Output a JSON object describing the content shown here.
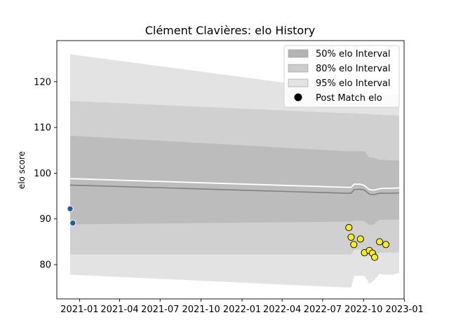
{
  "chart_data": {
    "type": "line",
    "title": "Clément Clavières: elo History",
    "xlabel": "",
    "ylabel": "elo score",
    "xlim": [
      "2020-11-11",
      "2022-12-31"
    ],
    "ylim": [
      72.5,
      129
    ],
    "x_ticks": [
      "2021-01",
      "2021-04",
      "2021-07",
      "2021-10",
      "2022-01",
      "2022-04",
      "2022-07",
      "2022-10",
      "2023-01"
    ],
    "y_ticks": [
      80,
      90,
      100,
      110,
      120
    ],
    "grid": false,
    "legend_position": "top-right",
    "legend": [
      {
        "label": "50% elo Interval",
        "kind": "patch",
        "color": "#b3b3b3"
      },
      {
        "label": "80% elo Interval",
        "kind": "patch",
        "color": "#cccccc"
      },
      {
        "label": "95% elo Interval",
        "kind": "patch",
        "color": "#e3e3e3"
      },
      {
        "label": "Post Match elo",
        "kind": "marker",
        "color": "#000000"
      }
    ],
    "bands": [
      {
        "level": "95%",
        "color": "#e3e3e3",
        "x": [
          "2020-12-11",
          "2022-08-24",
          "2022-09-03",
          "2022-09-10",
          "2022-09-24",
          "2022-10-03",
          "2022-10-14",
          "2022-10-24",
          "2022-11-06",
          "2022-11-15",
          "2022-12-05",
          "2022-12-20"
        ],
        "upper": [
          126,
          118,
          117.7,
          117.6,
          117.6,
          117.5,
          117.4,
          117.3,
          117.2,
          117.1,
          117.0,
          117.0
        ],
        "lower": [
          77.8,
          75.0,
          75.0,
          77.5,
          77.6,
          77.5,
          75.8,
          76.5,
          78.0,
          77.8,
          77.8,
          78.2
        ]
      },
      {
        "level": "80%",
        "color": "#d0d0d0",
        "x": [
          "2020-12-11",
          "2022-08-24",
          "2022-09-03",
          "2022-09-10",
          "2022-09-24",
          "2022-10-03",
          "2022-10-14",
          "2022-10-24",
          "2022-11-06",
          "2022-11-15",
          "2022-12-05",
          "2022-12-20"
        ],
        "upper": [
          115.8,
          113.1,
          113.1,
          113.1,
          113.0,
          113.0,
          112.9,
          112.8,
          112.8,
          112.7,
          112.7,
          112.6
        ],
        "lower": [
          82.2,
          82.2,
          82.2,
          83.2,
          83.3,
          83.2,
          81.8,
          82.0,
          82.6,
          82.6,
          82.6,
          82.7
        ]
      },
      {
        "level": "50%",
        "color": "#bcbcbc",
        "x": [
          "2020-12-11",
          "2022-08-24",
          "2022-09-03",
          "2022-09-10",
          "2022-09-24",
          "2022-10-03",
          "2022-10-14",
          "2022-10-24",
          "2022-11-06",
          "2022-11-15",
          "2022-12-05",
          "2022-12-20"
        ],
        "upper": [
          108.2,
          104.8,
          104.8,
          104.8,
          104.8,
          104.8,
          103.4,
          103.4,
          102.9,
          102.9,
          102.8,
          102.8
        ],
        "lower": [
          88.8,
          89.4,
          89.4,
          89.6,
          89.6,
          89.5,
          88.7,
          88.8,
          89.8,
          89.8,
          89.8,
          89.9
        ]
      }
    ],
    "series": [
      {
        "role": "mean",
        "color": "#808080",
        "x": [
          "2020-12-11",
          "2022-08-24",
          "2022-09-03",
          "2022-09-10",
          "2022-09-24",
          "2022-10-03",
          "2022-10-14",
          "2022-10-24",
          "2022-11-06",
          "2022-11-15",
          "2022-12-05",
          "2022-12-20"
        ],
        "values": [
          97.4,
          95.6,
          95.6,
          96.4,
          96.5,
          96.3,
          95.4,
          95.3,
          95.6,
          95.6,
          95.6,
          95.7
        ]
      },
      {
        "role": "upper-reference",
        "color": "#ffffff",
        "x": [
          "2020-12-11",
          "2022-08-24",
          "2022-09-03",
          "2022-09-10",
          "2022-09-24",
          "2022-10-03",
          "2022-10-14",
          "2022-10-24",
          "2022-11-06",
          "2022-11-15",
          "2022-12-05",
          "2022-12-20"
        ],
        "values": [
          98.8,
          96.9,
          96.9,
          97.6,
          97.6,
          97.3,
          96.4,
          96.3,
          96.6,
          96.7,
          96.7,
          96.8
        ]
      }
    ],
    "points": [
      {
        "x": "2020-12-11",
        "y": 92.2,
        "color": "#1f5fa0"
      },
      {
        "x": "2020-12-17",
        "y": 89.1,
        "color": "#1f5fa0"
      },
      {
        "x": "2022-08-29",
        "y": 88.1,
        "color": "#f5ee1a"
      },
      {
        "x": "2022-09-03",
        "y": 86.0,
        "color": "#f5ee1a"
      },
      {
        "x": "2022-09-09",
        "y": 84.4,
        "color": "#f5ee1a"
      },
      {
        "x": "2022-09-24",
        "y": 85.6,
        "color": "#f5ee1a"
      },
      {
        "x": "2022-10-03",
        "y": 82.6,
        "color": "#f5ee1a"
      },
      {
        "x": "2022-10-14",
        "y": 83.1,
        "color": "#f5ee1a"
      },
      {
        "x": "2022-10-21",
        "y": 82.5,
        "color": "#f5ee1a"
      },
      {
        "x": "2022-10-26",
        "y": 81.6,
        "color": "#f5ee1a"
      },
      {
        "x": "2022-11-06",
        "y": 85.0,
        "color": "#f5ee1a"
      },
      {
        "x": "2022-11-20",
        "y": 84.4,
        "color": "#f5ee1a"
      }
    ]
  }
}
